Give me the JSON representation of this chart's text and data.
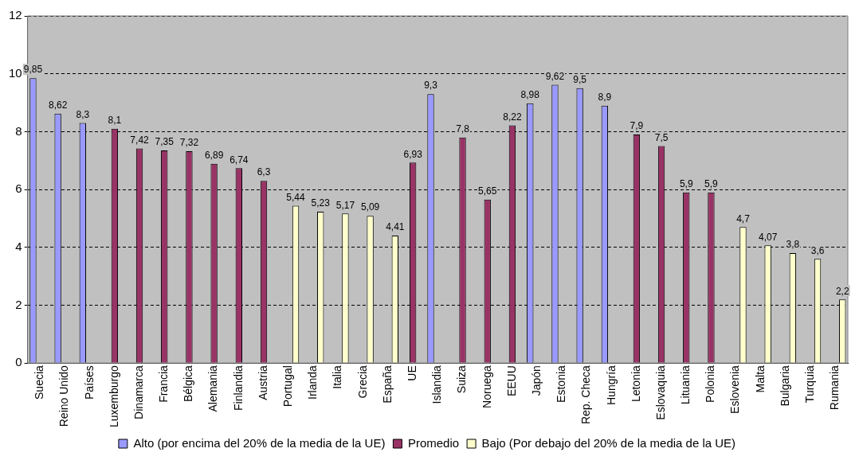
{
  "chart_data": {
    "type": "bar",
    "categories": [
      "Suecia",
      "Reino Unido",
      "Países",
      "Luxemburgo",
      "Dinamarca",
      "Francia",
      "Bélgica",
      "Alemania",
      "Finlandia",
      "Austria",
      "Portugal",
      "Irlanda",
      "Italia",
      "Grecia",
      "España",
      "UE",
      "Islandia",
      "Suiza",
      "Noruega",
      "EEUU",
      "Japón",
      "Estonia",
      "Rep. Checa",
      "Hungría",
      "Letonia",
      "Eslovaquia",
      "Lituania",
      "Polonia",
      "Eslovenia",
      "Malta",
      "Bulgaria",
      "Turquia",
      "Rumania"
    ],
    "series": [
      {
        "name": "Alto (por encima del 20% de la media de la UE)",
        "color": "#9999ff",
        "values": [
          9.85,
          8.62,
          8.3,
          null,
          null,
          null,
          null,
          null,
          null,
          null,
          null,
          null,
          null,
          null,
          null,
          null,
          9.3,
          null,
          null,
          null,
          8.98,
          9.62,
          9.5,
          8.9,
          null,
          null,
          null,
          null,
          null,
          null,
          null,
          null,
          null
        ],
        "value_labels": [
          "9,85",
          "8,62",
          "8,3",
          null,
          null,
          null,
          null,
          null,
          null,
          null,
          null,
          null,
          null,
          null,
          null,
          null,
          "9,3",
          null,
          null,
          null,
          "8,98",
          "9,62",
          "9,5",
          "8,9",
          null,
          null,
          null,
          null,
          null,
          null,
          null,
          null,
          null
        ]
      },
      {
        "name": "Promedio",
        "color": "#993366",
        "values": [
          null,
          null,
          null,
          8.1,
          7.42,
          7.35,
          7.32,
          6.89,
          6.74,
          6.3,
          null,
          null,
          null,
          null,
          null,
          6.93,
          null,
          7.8,
          5.65,
          8.22,
          null,
          null,
          null,
          null,
          7.9,
          7.5,
          5.9,
          5.9,
          null,
          null,
          null,
          null,
          null
        ],
        "value_labels": [
          null,
          null,
          null,
          "8,1",
          "7,42",
          "7,35",
          "7,32",
          "6,89",
          "6,74",
          "6,3",
          null,
          null,
          null,
          null,
          null,
          "6,93",
          null,
          "7,8",
          "5,65",
          "8,22",
          null,
          null,
          null,
          null,
          "7,9",
          "7,5",
          "5,9",
          "5,9",
          null,
          null,
          null,
          null,
          null
        ]
      },
      {
        "name": "Bajo (Por debajo del 20% de la media de la UE)",
        "color": "#ffffcc",
        "values": [
          null,
          null,
          null,
          null,
          null,
          null,
          null,
          null,
          null,
          null,
          5.44,
          5.23,
          5.17,
          5.09,
          4.41,
          null,
          null,
          null,
          null,
          null,
          null,
          null,
          null,
          null,
          null,
          null,
          null,
          null,
          4.7,
          4.07,
          3.8,
          3.6,
          2.2
        ],
        "value_labels": [
          null,
          null,
          null,
          null,
          null,
          null,
          null,
          null,
          null,
          null,
          "5,44",
          "5,23",
          "5,17",
          "5,09",
          "4,41",
          null,
          null,
          null,
          null,
          null,
          null,
          null,
          null,
          null,
          null,
          null,
          null,
          null,
          "4,7",
          "4,07",
          "3,8",
          "3,6",
          "2,2"
        ]
      }
    ],
    "ylim": [
      0,
      12
    ],
    "yticks": [
      0,
      2,
      4,
      6,
      8,
      10,
      12
    ],
    "grid": "y",
    "legend": "bottom"
  }
}
